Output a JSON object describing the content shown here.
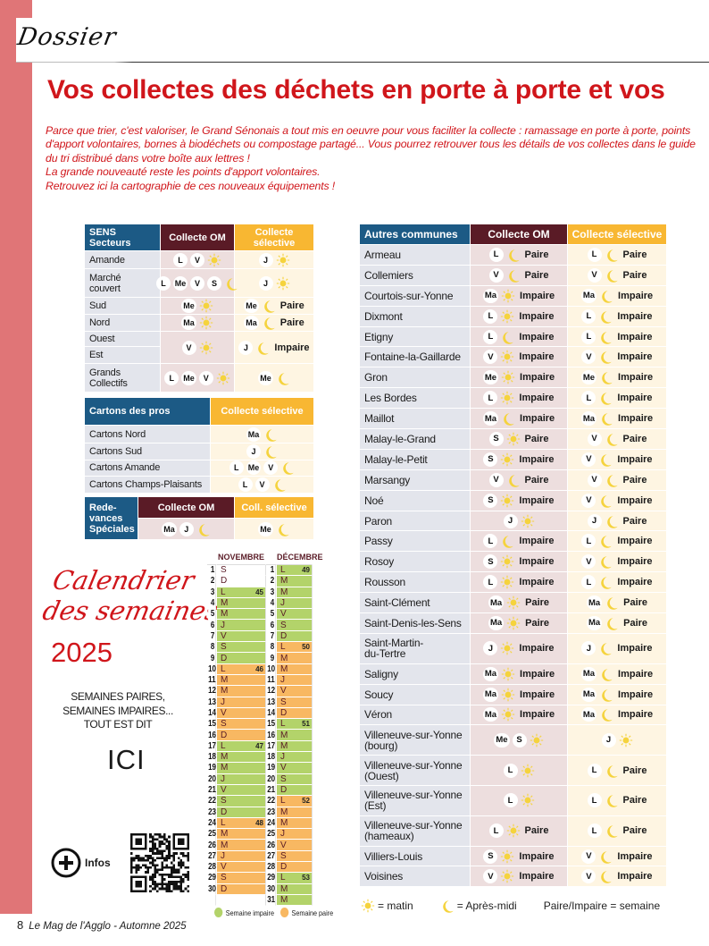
{
  "header": {
    "section": "Dossier",
    "title": "Vos collectes des déchets en porte à porte et vos"
  },
  "intro": [
    " Parce que trier, c'est valoriser, le Grand Sénonais a tout mis en oeuvre pour vous faciliter la collecte : ramassage en porte à porte, points d'apport volontaires, bornes à biodéchets ou compostage partagé... Vous pourrez retrouver tous les détails de vos collectes dans le guide du tri distribué dans votre boîte aux lettres !",
    "La grande nouveauté reste les points d'apport volontaires.",
    "Retrouvez ici la cartographie de ces nouveaux équipements !"
  ],
  "colors": {
    "accent": "#d0161b",
    "strip": "#e07577",
    "blue": "#1c5a85",
    "maroon": "#5a1b26",
    "orange": "#f8b732",
    "sun": "#f5d33d",
    "impaire": "#b3d36a",
    "paire": "#f8b862"
  },
  "sens": {
    "header": {
      "label": "SENS\nSecteurs",
      "om": "Collecte OM",
      "cs": "Collecte\nsélective"
    },
    "rows": [
      {
        "label": "Amande",
        "om": {
          "days": [
            "L",
            "V"
          ],
          "time": "sun"
        },
        "cs": {
          "days": [
            "J"
          ],
          "time": "sun"
        }
      },
      {
        "label": "Marché\ncouvert",
        "om": {
          "days": [
            "L",
            "Me",
            "V",
            "S"
          ],
          "time": "moon"
        },
        "cs": {
          "days": [
            "J"
          ],
          "time": "sun"
        }
      },
      {
        "label": "Sud",
        "om": {
          "days": [
            "Me"
          ],
          "time": "sun"
        },
        "cs": {
          "days": [
            "Me"
          ],
          "time": "moon",
          "week": "Paire"
        }
      },
      {
        "label": "Nord",
        "om": {
          "days": [
            "Ma"
          ],
          "time": "sun"
        },
        "cs": {
          "days": [
            "Ma"
          ],
          "time": "moon",
          "week": "Paire"
        }
      },
      {
        "label": "Ouest",
        "label2": "Est",
        "om": {
          "days": [
            "V"
          ],
          "time": "sun"
        },
        "cs": {
          "days": [
            "J"
          ],
          "time": "moon",
          "week": "Impaire"
        }
      },
      {
        "label": "Grands\nCollectifs",
        "om": {
          "days": [
            "L",
            "Me",
            "V"
          ],
          "time": "sun"
        },
        "cs": {
          "days": [
            "Me"
          ],
          "time": "moon"
        }
      }
    ]
  },
  "cartons": {
    "header": {
      "label": "Cartons des pros",
      "cs": "Collecte sélective"
    },
    "rows": [
      {
        "label": "Cartons Nord",
        "cs": {
          "days": [
            "Ma"
          ],
          "time": "moon"
        }
      },
      {
        "label": "Cartons Sud",
        "cs": {
          "days": [
            "J"
          ],
          "time": "moon"
        }
      },
      {
        "label": "Cartons Amande",
        "cs": {
          "days": [
            "L",
            "Me",
            "V"
          ],
          "time": "moon"
        }
      },
      {
        "label": "Cartons Champs-Plaisants",
        "cs": {
          "days": [
            "L",
            "V"
          ],
          "time": "moon"
        }
      }
    ]
  },
  "redevances": {
    "label": "Rede-\nvances\nSpéciales",
    "om_header": "Collecte OM",
    "cs_header": "Coll. sélective",
    "om": {
      "days": [
        "Ma",
        "J"
      ],
      "time": "moon"
    },
    "cs": {
      "days": [
        "Me"
      ],
      "time": "moon"
    }
  },
  "communes": {
    "header": {
      "label": "Autres communes",
      "om": "Collecte OM",
      "cs": "Collecte sélective"
    },
    "rows": [
      {
        "label": "Armeau",
        "om": {
          "days": [
            "L"
          ],
          "time": "moon",
          "week": "Paire"
        },
        "cs": {
          "days": [
            "L"
          ],
          "time": "moon",
          "week": "Paire"
        }
      },
      {
        "label": "Collemiers",
        "om": {
          "days": [
            "V"
          ],
          "time": "moon",
          "week": "Paire"
        },
        "cs": {
          "days": [
            "V"
          ],
          "time": "moon",
          "week": "Paire"
        }
      },
      {
        "label": "Courtois-sur-Yonne",
        "om": {
          "days": [
            "Ma"
          ],
          "time": "sun",
          "week": "Impaire"
        },
        "cs": {
          "days": [
            "Ma"
          ],
          "time": "moon",
          "week": "Impaire"
        }
      },
      {
        "label": "Dixmont",
        "om": {
          "days": [
            "L"
          ],
          "time": "sun",
          "week": "Impaire"
        },
        "cs": {
          "days": [
            "L"
          ],
          "time": "moon",
          "week": "Impaire"
        }
      },
      {
        "label": "Etigny",
        "om": {
          "days": [
            "L"
          ],
          "time": "moon",
          "week": "Impaire"
        },
        "cs": {
          "days": [
            "L"
          ],
          "time": "moon",
          "week": "Impaire"
        }
      },
      {
        "label": "Fontaine-la-Gaillarde",
        "om": {
          "days": [
            "V"
          ],
          "time": "sun",
          "week": "Impaire"
        },
        "cs": {
          "days": [
            "V"
          ],
          "time": "moon",
          "week": "Impaire"
        }
      },
      {
        "label": "Gron",
        "om": {
          "days": [
            "Me"
          ],
          "time": "sun",
          "week": "Impaire"
        },
        "cs": {
          "days": [
            "Me"
          ],
          "time": "moon",
          "week": "Impaire"
        }
      },
      {
        "label": "Les Bordes",
        "om": {
          "days": [
            "L"
          ],
          "time": "sun",
          "week": "Impaire"
        },
        "cs": {
          "days": [
            "L"
          ],
          "time": "moon",
          "week": "Impaire"
        }
      },
      {
        "label": "Maillot",
        "om": {
          "days": [
            "Ma"
          ],
          "time": "moon",
          "week": "Impaire"
        },
        "cs": {
          "days": [
            "Ma"
          ],
          "time": "moon",
          "week": "Impaire"
        }
      },
      {
        "label": "Malay-le-Grand",
        "om": {
          "days": [
            "S"
          ],
          "time": "sun",
          "week": "Paire"
        },
        "cs": {
          "days": [
            "V"
          ],
          "time": "moon",
          "week": "Paire"
        }
      },
      {
        "label": "Malay-le-Petit",
        "om": {
          "days": [
            "S"
          ],
          "time": "sun",
          "week": "Impaire"
        },
        "cs": {
          "days": [
            "V"
          ],
          "time": "moon",
          "week": "Impaire"
        }
      },
      {
        "label": "Marsangy",
        "om": {
          "days": [
            "V"
          ],
          "time": "moon",
          "week": "Paire"
        },
        "cs": {
          "days": [
            "V"
          ],
          "time": "moon",
          "week": "Paire"
        }
      },
      {
        "label": "Noé",
        "om": {
          "days": [
            "S"
          ],
          "time": "sun",
          "week": "Impaire"
        },
        "cs": {
          "days": [
            "V"
          ],
          "time": "moon",
          "week": "Impaire"
        }
      },
      {
        "label": "Paron",
        "om": {
          "days": [
            "J"
          ],
          "time": "sun"
        },
        "cs": {
          "days": [
            "J"
          ],
          "time": "moon",
          "week": "Paire"
        }
      },
      {
        "label": "Passy",
        "om": {
          "days": [
            "L"
          ],
          "time": "moon",
          "week": "Impaire"
        },
        "cs": {
          "days": [
            "L"
          ],
          "time": "moon",
          "week": "Impaire"
        }
      },
      {
        "label": "Rosoy",
        "om": {
          "days": [
            "S"
          ],
          "time": "sun",
          "week": "Impaire"
        },
        "cs": {
          "days": [
            "V"
          ],
          "time": "moon",
          "week": "Impaire"
        }
      },
      {
        "label": "Rousson",
        "om": {
          "days": [
            "L"
          ],
          "time": "sun",
          "week": "Impaire"
        },
        "cs": {
          "days": [
            "L"
          ],
          "time": "moon",
          "week": "Impaire"
        }
      },
      {
        "label": "Saint-Clément",
        "om": {
          "days": [
            "Ma"
          ],
          "time": "sun",
          "week": "Paire"
        },
        "cs": {
          "days": [
            "Ma"
          ],
          "time": "moon",
          "week": "Paire"
        }
      },
      {
        "label": "Saint-Denis-les-Sens",
        "om": {
          "days": [
            "Ma"
          ],
          "time": "sun",
          "week": "Paire"
        },
        "cs": {
          "days": [
            "Ma"
          ],
          "time": "moon",
          "week": "Paire"
        }
      },
      {
        "label": "Saint-Martin-\ndu-Tertre",
        "om": {
          "days": [
            "J"
          ],
          "time": "sun",
          "week": "Impaire"
        },
        "cs": {
          "days": [
            "J"
          ],
          "time": "moon",
          "week": "Impaire"
        }
      },
      {
        "label": "Saligny",
        "om": {
          "days": [
            "Ma"
          ],
          "time": "sun",
          "week": "Impaire"
        },
        "cs": {
          "days": [
            "Ma"
          ],
          "time": "moon",
          "week": "Impaire"
        }
      },
      {
        "label": "Soucy",
        "om": {
          "days": [
            "Ma"
          ],
          "time": "sun",
          "week": "Impaire"
        },
        "cs": {
          "days": [
            "Ma"
          ],
          "time": "moon",
          "week": "Impaire"
        }
      },
      {
        "label": "Véron",
        "om": {
          "days": [
            "Ma"
          ],
          "time": "sun",
          "week": "Impaire"
        },
        "cs": {
          "days": [
            "Ma"
          ],
          "time": "moon",
          "week": "Impaire"
        }
      },
      {
        "label": "Villeneuve-sur-Yonne\n(bourg)",
        "om": {
          "days": [
            "Me",
            "S"
          ],
          "time": "sun"
        },
        "cs": {
          "days": [
            "J"
          ],
          "time": "sun"
        }
      },
      {
        "label": "Villeneuve-sur-Yonne\n(Ouest)",
        "om": {
          "days": [
            "L"
          ],
          "time": "sun"
        },
        "cs": {
          "days": [
            "L"
          ],
          "time": "moon",
          "week": "Paire"
        }
      },
      {
        "label": "Villeneuve-sur-Yonne\n(Est)",
        "om": {
          "days": [
            "L"
          ],
          "time": "sun"
        },
        "cs": {
          "days": [
            "L"
          ],
          "time": "moon",
          "week": "Paire"
        }
      },
      {
        "label": "Villeneuve-sur-Yonne\n(hameaux)",
        "om": {
          "days": [
            "L"
          ],
          "time": "sun",
          "week": "Paire"
        },
        "cs": {
          "days": [
            "L"
          ],
          "time": "moon",
          "week": "Paire"
        }
      },
      {
        "label": "Villiers-Louis",
        "om": {
          "days": [
            "S"
          ],
          "time": "sun",
          "week": "Impaire"
        },
        "cs": {
          "days": [
            "V"
          ],
          "time": "moon",
          "week": "Impaire"
        }
      },
      {
        "label": "Voisines",
        "om": {
          "days": [
            "V"
          ],
          "time": "sun",
          "week": "Impaire"
        },
        "cs": {
          "days": [
            "V"
          ],
          "time": "moon",
          "week": "Impaire"
        }
      }
    ]
  },
  "legend": {
    "sun": "= matin",
    "moon": "= Après-midi",
    "week": "Paire/Impaire = semaine"
  },
  "calendar": {
    "title1": "Calendrier",
    "title2": "des semaines",
    "year": "2025",
    "slogan": "SEMAINES PAIRES,\nSEMAINES IMPAIRES...\nTOUT EST DIT",
    "ici": "ICI",
    "infos": "Infos",
    "months": [
      {
        "name": "NOVEMBRE",
        "days": [
          "S",
          "D",
          "L",
          "M",
          "M",
          "J",
          "V",
          "S",
          "D",
          "L",
          "M",
          "M",
          "J",
          "V",
          "S",
          "D",
          "L",
          "M",
          "M",
          "J",
          "V",
          "S",
          "D",
          "L",
          "M",
          "M",
          "J",
          "V",
          "S",
          "D"
        ],
        "weeks": [
          {
            "week": "45",
            "from": 3,
            "to": 9,
            "parity": "impaire"
          },
          {
            "week": "46",
            "from": 10,
            "to": 16,
            "parity": "paire"
          },
          {
            "week": "47",
            "from": 17,
            "to": 23,
            "parity": "impaire"
          },
          {
            "week": "48",
            "from": 24,
            "to": 30,
            "parity": "paire"
          }
        ]
      },
      {
        "name": "DÉCEMBRE",
        "days": [
          "L",
          "M",
          "M",
          "J",
          "V",
          "S",
          "D",
          "L",
          "M",
          "M",
          "J",
          "V",
          "S",
          "D",
          "L",
          "M",
          "M",
          "J",
          "V",
          "S",
          "D",
          "L",
          "M",
          "M",
          "J",
          "V",
          "S",
          "D",
          "L",
          "M",
          "M"
        ],
        "weeks": [
          {
            "week": "49",
            "from": 1,
            "to": 7,
            "parity": "impaire"
          },
          {
            "week": "50",
            "from": 8,
            "to": 14,
            "parity": "paire"
          },
          {
            "week": "51",
            "from": 15,
            "to": 21,
            "parity": "impaire"
          },
          {
            "week": "52",
            "from": 22,
            "to": 28,
            "parity": "paire"
          },
          {
            "week": "53",
            "from": 29,
            "to": 31,
            "parity": "impaire"
          }
        ]
      }
    ],
    "legend_impaire": "Semaine impaire",
    "legend_paire": "Semaine paire"
  },
  "footer": {
    "page": "8",
    "magazine": "Le Mag de l'Agglo - Automne 2025"
  }
}
